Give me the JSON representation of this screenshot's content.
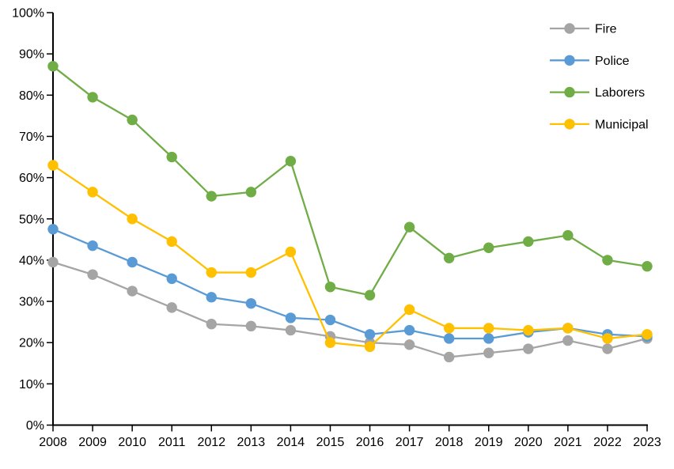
{
  "chart_data": {
    "type": "line",
    "title": "",
    "xlabel": "",
    "ylabel": "",
    "x": [
      2008,
      2009,
      2010,
      2011,
      2012,
      2013,
      2014,
      2015,
      2016,
      2017,
      2018,
      2019,
      2020,
      2021,
      2022,
      2023
    ],
    "x_tick_labels": [
      "2008",
      "2009",
      "2010",
      "2011",
      "2012",
      "2013",
      "2014",
      "2015",
      "2016",
      "2017",
      "2018",
      "2019",
      "2020",
      "2021",
      "2022",
      "2023"
    ],
    "ylim": [
      0,
      100
    ],
    "y_tick_step": 10,
    "y_tick_labels": [
      "0%",
      "10%",
      "20%",
      "30%",
      "40%",
      "50%",
      "60%",
      "70%",
      "80%",
      "90%",
      "100%"
    ],
    "grid": false,
    "legend_position": "top-right",
    "axis_color": "#000000",
    "series": [
      {
        "name": "Fire",
        "color": "#a5a5a5",
        "values": [
          39.5,
          36.5,
          32.5,
          28.5,
          24.5,
          24.0,
          23.0,
          21.5,
          20.0,
          19.5,
          16.5,
          17.5,
          18.5,
          20.5,
          18.5,
          21.0
        ]
      },
      {
        "name": "Police",
        "color": "#5b9bd5",
        "values": [
          47.5,
          43.5,
          39.5,
          35.5,
          31.0,
          29.5,
          26.0,
          25.5,
          22.0,
          23.0,
          21.0,
          21.0,
          22.5,
          23.5,
          22.0,
          21.5
        ]
      },
      {
        "name": "Laborers",
        "color": "#70ad47",
        "values": [
          87.0,
          79.5,
          74.0,
          65.0,
          55.5,
          56.5,
          64.0,
          33.5,
          31.5,
          48.0,
          40.5,
          43.0,
          44.5,
          46.0,
          40.0,
          38.5
        ]
      },
      {
        "name": "Municipal",
        "color": "#ffc000",
        "values": [
          63.0,
          56.5,
          50.0,
          44.5,
          37.0,
          37.0,
          42.0,
          20.0,
          19.0,
          28.0,
          23.5,
          23.5,
          23.0,
          23.5,
          21.0,
          22.0
        ]
      }
    ],
    "legend": {
      "items": [
        {
          "label": "Fire",
          "color": "#a5a5a5"
        },
        {
          "label": "Police",
          "color": "#5b9bd5"
        },
        {
          "label": "Laborers",
          "color": "#70ad47"
        },
        {
          "label": "Municipal",
          "color": "#ffc000"
        }
      ]
    }
  }
}
